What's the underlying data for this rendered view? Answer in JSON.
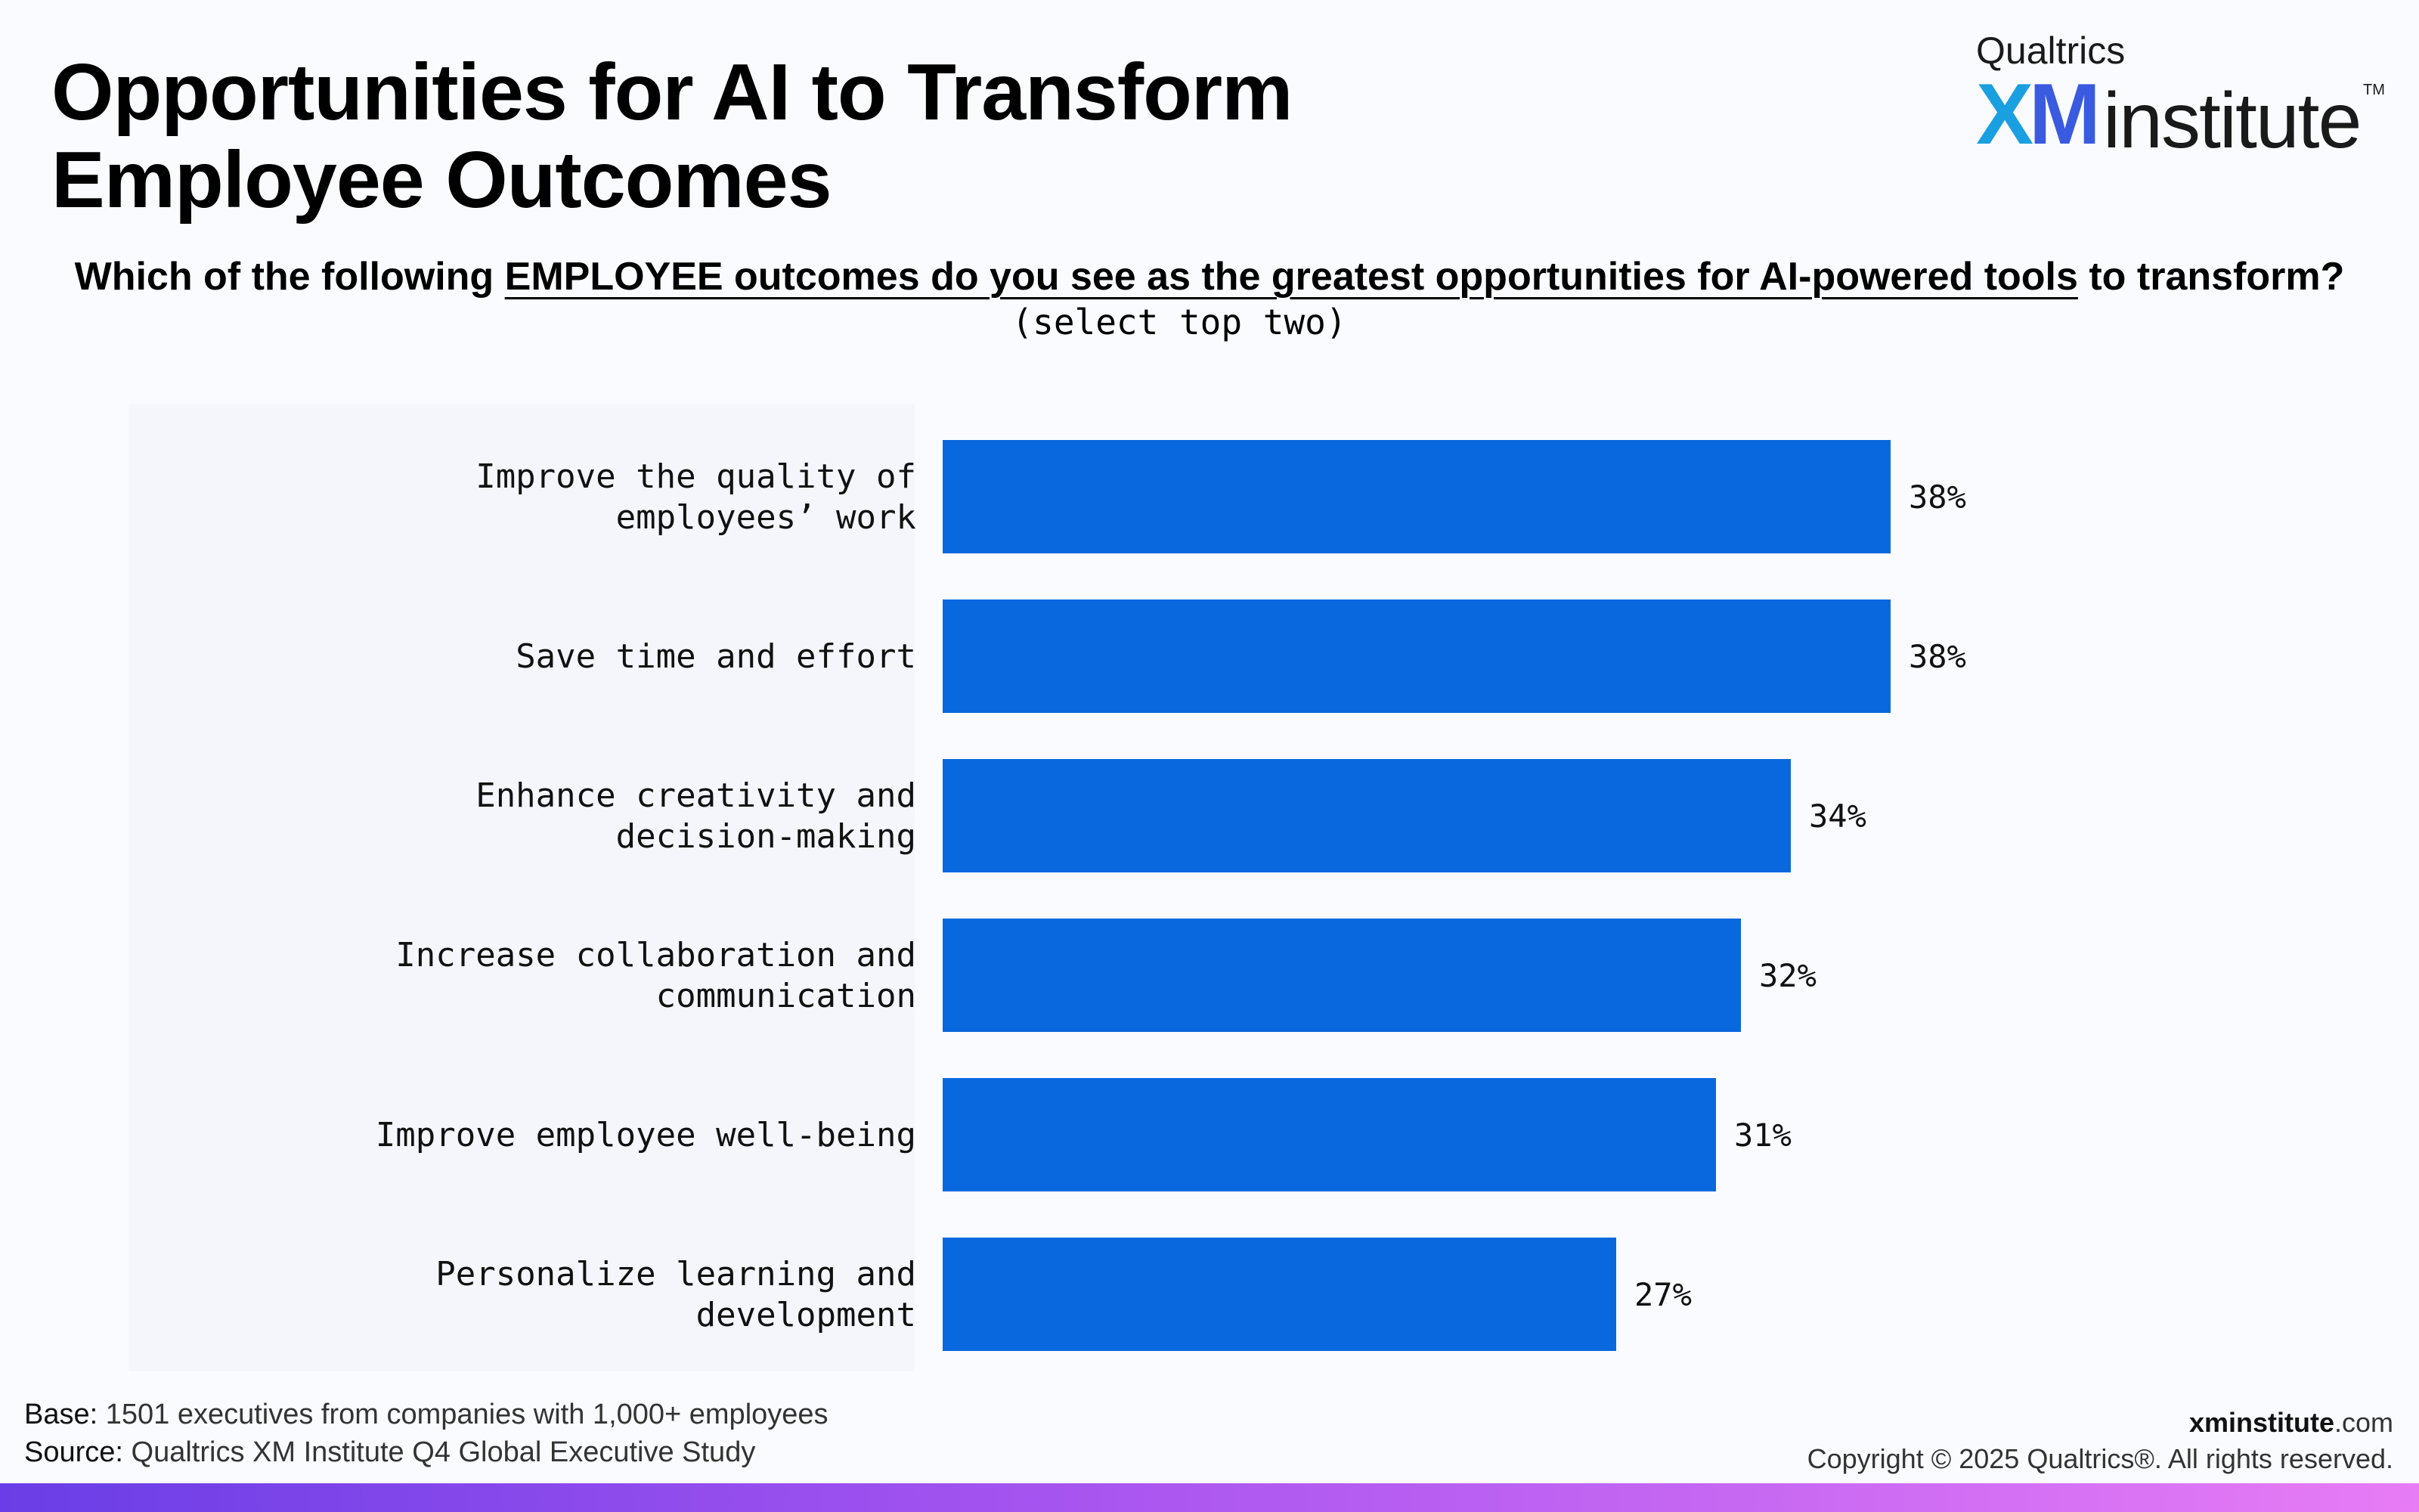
{
  "header": {
    "title_line1": "Opportunities for AI to Transform",
    "title_line2": "Employee Outcomes"
  },
  "logo": {
    "brand": "Qualtrics",
    "xm_x": "X",
    "xm_m": "M",
    "institute": "institute",
    "tm": "TM"
  },
  "question": {
    "pre": "Which of the following ",
    "underlined": "EMPLOYEE outcomes do you see as the greatest opportunities for AI-powered tools",
    "post": " to transform?",
    "instruction": "(select top two)"
  },
  "chart_data": {
    "type": "bar",
    "orientation": "horizontal",
    "categories": [
      "Improve the quality of employees’ work",
      "Save time and effort",
      "Enhance creativity and decision-making",
      "Increase collaboration and communication",
      "Improve employee well-being",
      "Personalize learning and development"
    ],
    "values": [
      38,
      38,
      34,
      32,
      31,
      27
    ],
    "value_labels": [
      "38%",
      "38%",
      "34%",
      "32%",
      "31%",
      "27%"
    ],
    "bar_color": "#0a68de"
  },
  "footer": {
    "base_label": "Base:",
    "base_text": " 1501 executives from companies with 1,000+ employees",
    "source_label": "Source:",
    "source_text": " Qualtrics XM Institute Q4 Global Executive Study",
    "site_bold": "xminstitute",
    "site_suffix": ".com",
    "copyright": "Copyright © 2025 Qualtrics®. All rights reserved."
  }
}
